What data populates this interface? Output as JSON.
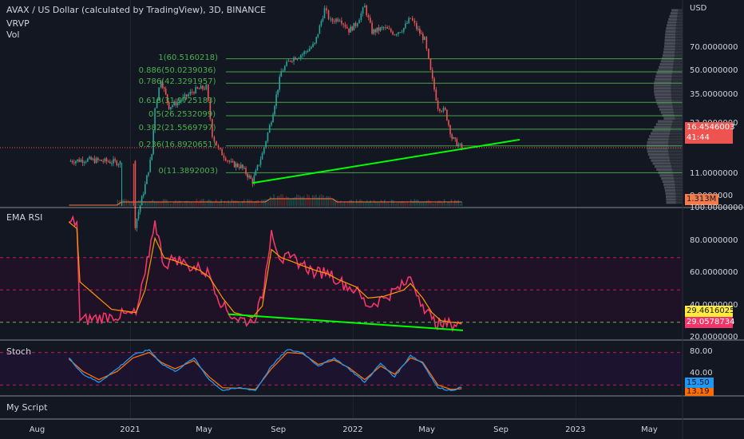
{
  "header": {
    "symbol_title": "AVAX / US Dollar (calculated by TradingView), 3D, BINANCE",
    "indicator_vrvp": "VRVP",
    "indicator_vol": "Vol"
  },
  "price_axis": {
    "currency": "USD",
    "ticks": [
      "70.0000000",
      "50.0000000",
      "35.0000000",
      "23.0000000",
      "11.0000000",
      "8.0000000"
    ],
    "last_price": "16.4546003",
    "countdown": "41:44",
    "volume_badge": "1.313M"
  },
  "fib_levels": [
    {
      "ratio": "1",
      "price": "60.5160218",
      "label": "1(60.5160218)"
    },
    {
      "ratio": "0.886",
      "price": "50.0239036",
      "label": "0.886(50.0239036)"
    },
    {
      "ratio": "0.786",
      "price": "42.3291957",
      "label": "0.786(42.3291957)"
    },
    {
      "ratio": "0.618",
      "price": "31.9725183",
      "label": "0.618(31.9725183)"
    },
    {
      "ratio": "0.5",
      "price": "26.2532099",
      "label": "0.5(26.2532099)"
    },
    {
      "ratio": "0.382",
      "price": "21.5569797",
      "label": "0.382(21.5569797)"
    },
    {
      "ratio": "0.236",
      "price": "16.8920651",
      "label": "0.236(16.8920651)"
    },
    {
      "ratio": "0",
      "price": "11.3892003",
      "label": "0(11.3892003)"
    }
  ],
  "rsi_pane": {
    "title": "EMA RSI",
    "ticks": [
      "100.0000000",
      "80.0000000",
      "60.0000000",
      "40.0000000",
      "20.0000000"
    ],
    "ema_badge": "29.4616025",
    "rsi_badge": "29.0578734"
  },
  "stoch_pane": {
    "title": "Stoch",
    "ticks": [
      "80.00",
      "40.00"
    ],
    "k_badge": "15.50",
    "d_badge": "13.19"
  },
  "script_pane": {
    "title": "My Script"
  },
  "time_axis": {
    "labels": [
      "Aug",
      "2021",
      "May",
      "Sep",
      "2022",
      "May",
      "Sep",
      "2023",
      "May"
    ]
  },
  "colors": {
    "background": "#131722",
    "up": "#26a69a",
    "down": "#ef5350",
    "fib": "#4caf50",
    "trendline": "#00ff00",
    "rsi": "#f23669",
    "ema": "#ff9800",
    "stoch_k": "#2196f3",
    "stoch_d": "#ff6d00"
  },
  "chart_data": [
    {
      "type": "candlestick",
      "title": "AVAX / US Dollar (calculated by TradingView), 3D, BINANCE",
      "y_scale": "log",
      "ylim": [
        7,
        140
      ],
      "x": [
        "2020-09-22",
        "2020-10-20",
        "2020-11-20",
        "2020-12-15",
        "2021-01-06",
        "2021-01-25",
        "2021-02-05",
        "2021-02-10",
        "2021-02-20",
        "2021-03-05",
        "2021-03-25",
        "2021-04-15",
        "2021-05-05",
        "2021-05-15",
        "2021-05-25",
        "2021-06-15",
        "2021-07-01",
        "2021-07-20",
        "2021-08-05",
        "2021-08-20",
        "2021-09-05",
        "2021-09-20",
        "2021-10-10",
        "2021-10-30",
        "2021-11-15",
        "2021-11-25",
        "2021-12-10",
        "2021-12-25",
        "2022-01-05",
        "2022-01-20",
        "2022-02-01",
        "2022-02-20",
        "2022-03-10",
        "2022-03-25",
        "2022-04-05",
        "2022-04-15",
        "2022-04-28",
        "2022-05-08",
        "2022-05-20",
        "2022-06-01",
        "2022-06-12",
        "2022-06-20",
        "2022-06-28"
      ],
      "close": [
        13.5,
        13.8,
        13.5,
        13.2,
        4.8,
        9.5,
        15.0,
        30.0,
        45.0,
        30.0,
        33.0,
        38.0,
        40.0,
        20.0,
        16.0,
        13.0,
        12.5,
        10.0,
        15.0,
        25.0,
        50.0,
        60.0,
        65.0,
        75.0,
        125.0,
        105.0,
        110.0,
        92.0,
        100.0,
        130.0,
        90.0,
        95.0,
        88.0,
        95.0,
        110.0,
        95.0,
        80.0,
        50.0,
        30.0,
        28.0,
        19.0,
        17.5,
        16.45
      ],
      "volume_profile": true,
      "fib_retracement": [
        60.5160218,
        50.0239036,
        42.3291957,
        31.9725183,
        26.2532099,
        21.5569797,
        16.8920651,
        11.3892003
      ],
      "trendline": {
        "from": {
          "x": "2021-07-20",
          "y": 9.8
        },
        "to": {
          "x": "2022-10-01",
          "y": 18.5
        }
      },
      "last_price": 16.4546003
    },
    {
      "type": "line",
      "title": "EMA RSI",
      "ylim": [
        20,
        100
      ],
      "hlines": [
        70,
        50,
        30
      ],
      "x": [
        "2020-09-22",
        "2020-10-05",
        "2020-10-10",
        "2020-12-01",
        "2021-01-10",
        "2021-01-25",
        "2021-02-10",
        "2021-02-25",
        "2021-03-15",
        "2021-04-05",
        "2021-04-25",
        "2021-05-10",
        "2021-06-01",
        "2021-06-20",
        "2021-07-20",
        "2021-08-05",
        "2021-08-20",
        "2021-09-05",
        "2021-09-20",
        "2021-10-10",
        "2021-11-01",
        "2021-11-20",
        "2021-12-10",
        "2022-01-05",
        "2022-01-25",
        "2022-02-20",
        "2022-03-25",
        "2022-04-05",
        "2022-04-25",
        "2022-05-10",
        "2022-05-25",
        "2022-06-10",
        "2022-06-28"
      ],
      "series": [
        {
          "name": "RSI",
          "values": [
            92,
            92,
            31,
            34,
            35,
            60,
            93,
            65,
            70,
            65,
            63,
            60,
            40,
            33,
            30,
            45,
            87,
            68,
            70,
            66,
            60,
            62,
            55,
            50,
            40,
            45,
            53,
            58,
            41,
            32,
            28,
            29,
            29.06
          ]
        },
        {
          "name": "EMA",
          "values": [
            92,
            88,
            55,
            38,
            36,
            50,
            82,
            70,
            68,
            65,
            62,
            58,
            45,
            36,
            33,
            40,
            75,
            70,
            68,
            65,
            62,
            60,
            56,
            52,
            45,
            46,
            50,
            54,
            45,
            36,
            31,
            30,
            29.46
          ]
        }
      ],
      "trendline": {
        "from": {
          "x": "2021-06-10",
          "y": 35
        },
        "to": {
          "x": "2022-06-30",
          "y": 25
        }
      }
    },
    {
      "type": "line",
      "title": "Stoch",
      "ylim": [
        0,
        100
      ],
      "hlines": [
        80,
        20
      ],
      "x": [
        "2020-09-22",
        "2020-10-15",
        "2020-11-10",
        "2020-12-10",
        "2021-01-05",
        "2021-02-01",
        "2021-02-20",
        "2021-03-15",
        "2021-04-15",
        "2021-05-10",
        "2021-06-01",
        "2021-07-01",
        "2021-07-25",
        "2021-08-20",
        "2021-09-15",
        "2021-10-10",
        "2021-11-05",
        "2021-12-01",
        "2021-12-25",
        "2022-01-20",
        "2022-02-15",
        "2022-03-10",
        "2022-04-05",
        "2022-04-25",
        "2022-05-20",
        "2022-06-10",
        "2022-06-28"
      ],
      "series": [
        {
          "name": "%K",
          "values": [
            70,
            40,
            25,
            50,
            75,
            85,
            60,
            45,
            70,
            30,
            10,
            15,
            10,
            55,
            85,
            80,
            55,
            70,
            50,
            25,
            60,
            35,
            75,
            60,
            15,
            10,
            15.5
          ]
        },
        {
          "name": "%D",
          "values": [
            68,
            45,
            30,
            45,
            70,
            80,
            62,
            50,
            65,
            35,
            15,
            14,
            12,
            50,
            80,
            78,
            58,
            66,
            52,
            30,
            55,
            40,
            70,
            62,
            20,
            12,
            13.19
          ]
        }
      ]
    }
  ]
}
